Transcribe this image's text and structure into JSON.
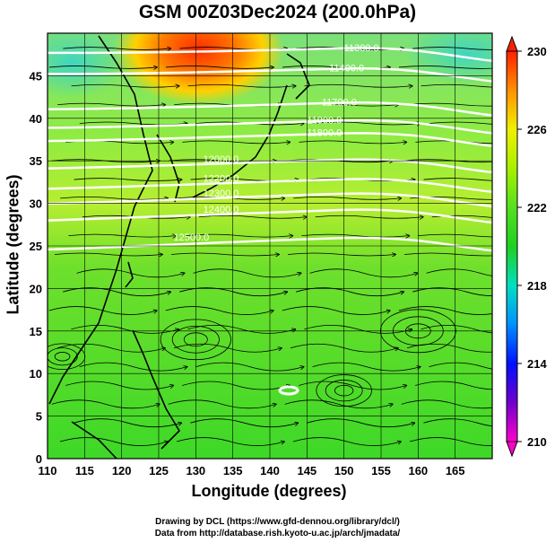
{
  "title": "GSM 00Z03Dec2024 (200.0hPa)",
  "xaxis": {
    "label": "Longitude (degrees)",
    "ticks": [
      110,
      115,
      120,
      125,
      130,
      135,
      140,
      145,
      150,
      155,
      160,
      165
    ],
    "range": [
      110,
      170
    ]
  },
  "yaxis": {
    "label": "Latitude  (degrees)",
    "ticks": [
      0,
      5,
      10,
      15,
      20,
      25,
      30,
      35,
      40,
      45
    ],
    "range": [
      0,
      50
    ]
  },
  "colorbar": {
    "ticks": [
      210,
      214,
      218,
      222,
      226,
      230
    ],
    "range": [
      210,
      230
    ],
    "colors": [
      "#ff00cc",
      "#6a00cc",
      "#0010ff",
      "#0080ff",
      "#00d0ff",
      "#00e090",
      "#22d000",
      "#55e020",
      "#a8f000",
      "#f0f000",
      "#ffb000",
      "#ff5500",
      "#ff2000"
    ]
  },
  "contours": [
    {
      "label": "12500.0",
      "lon": 127,
      "lat": 25.3
    },
    {
      "label": "12400.0",
      "lon": 131,
      "lat": 28.6
    },
    {
      "label": "12300.0",
      "lon": 131,
      "lat": 30.5
    },
    {
      "label": "12200.0",
      "lon": 131,
      "lat": 32.2
    },
    {
      "label": "12000.0",
      "lon": 131,
      "lat": 34.5
    },
    {
      "label": "11800.0",
      "lon": 145,
      "lat": 37.6
    },
    {
      "label": "11900.0",
      "lon": 145,
      "lat": 39.1
    },
    {
      "label": "11700.0",
      "lon": 147,
      "lat": 41.2
    },
    {
      "label": "11400.0",
      "lon": 148,
      "lat": 45.2
    },
    {
      "label": "11300.0",
      "lon": 150,
      "lat": 47.6
    }
  ],
  "credit": {
    "line1": "Drawing by DCL (https://www.gfd-dennou.org/library/dcl/)",
    "line2": "Data from http://database.rish.kyoto-u.ac.jp/arch/jmadata/"
  }
}
